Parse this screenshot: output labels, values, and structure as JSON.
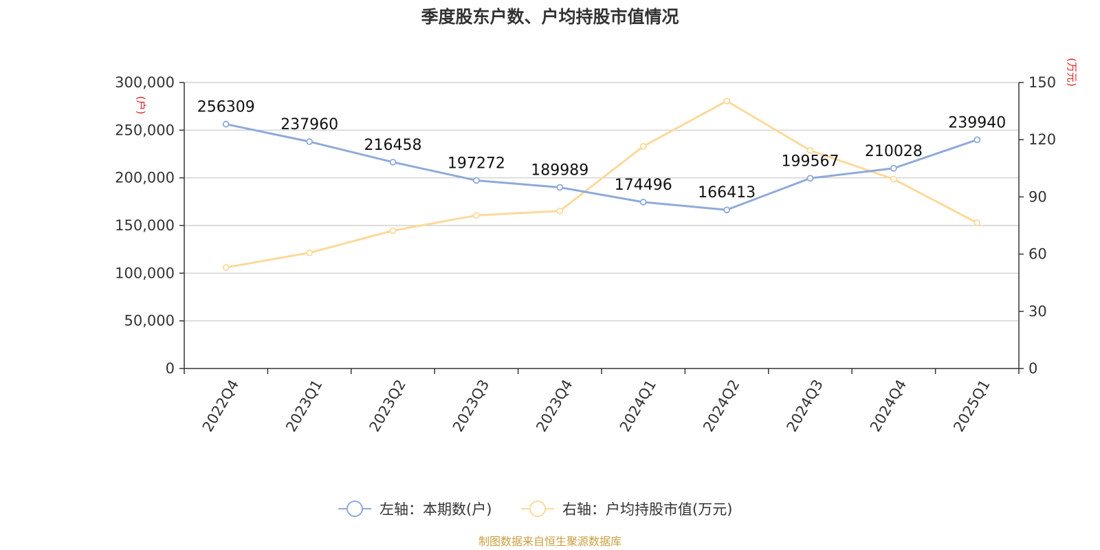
{
  "chart_data": {
    "type": "line",
    "title": "季度股东户数、户均持股市值情况",
    "categories": [
      "2022Q4",
      "2023Q1",
      "2023Q2",
      "2023Q3",
      "2023Q4",
      "2024Q1",
      "2024Q2",
      "2024Q3",
      "2024Q4",
      "2025Q1"
    ],
    "left_axis": {
      "unit": "(户)",
      "range": [
        0,
        300000
      ],
      "ticks": [
        {
          "value": 0,
          "label": "0"
        },
        {
          "value": 50000,
          "label": "50,000"
        },
        {
          "value": 100000,
          "label": "100,000"
        },
        {
          "value": 150000,
          "label": "150,000"
        },
        {
          "value": 200000,
          "label": "200,000"
        },
        {
          "value": 250000,
          "label": "250,000"
        },
        {
          "value": 300000,
          "label": "300,000"
        }
      ]
    },
    "right_axis": {
      "unit": "(万元)",
      "range": [
        0,
        150
      ],
      "ticks": [
        {
          "value": 0,
          "label": "0"
        },
        {
          "value": 30,
          "label": "30"
        },
        {
          "value": 60,
          "label": "60"
        },
        {
          "value": 90,
          "label": "90"
        },
        {
          "value": 120,
          "label": "120"
        },
        {
          "value": 150,
          "label": "150"
        }
      ]
    },
    "series": [
      {
        "name": "左轴：本期数(户)",
        "axis": "left",
        "color": "#8eaad8",
        "values": [
          256309,
          237960,
          216458,
          197272,
          189989,
          174496,
          166413,
          199567,
          210028,
          239940
        ],
        "labels": [
          "256309",
          "237960",
          "216458",
          "197272",
          "189989",
          "174496",
          "166413",
          "199567",
          "210028",
          "239940"
        ]
      },
      {
        "name": "右轴：户均持股市值(万元)",
        "axis": "right",
        "color": "#fcd99a",
        "values": [
          53,
          60.7,
          72.3,
          80.3,
          82.6,
          116.5,
          140.3,
          114.4,
          99.3,
          76.4
        ]
      }
    ],
    "grid": true,
    "legend": "bottom-center"
  },
  "source": "制图数据来自恒生聚源数据库"
}
